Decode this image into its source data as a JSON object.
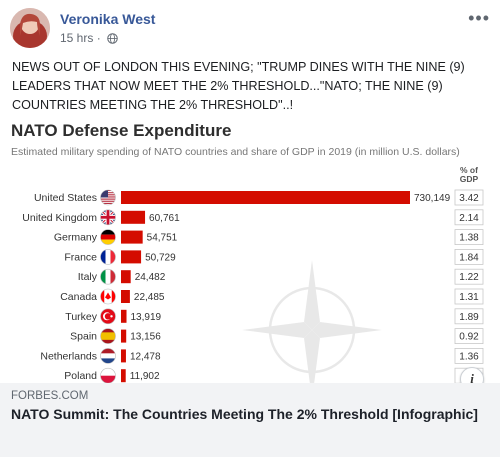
{
  "post": {
    "author": "Veronika West",
    "time": "15 hrs",
    "privacy_icon": "globe-icon",
    "more_label": "•••",
    "text": "NEWS OUT OF LONDON THIS EVENING; \"TRUMP DINES WITH THE NINE (9) LEADERS THAT NOW MEET THE 2% THRESHOLD...\"NATO; THE NINE (9) COUNTRIES MEETING THE 2% THRESHOLD\"..!"
  },
  "link": {
    "domain": "FORBES.COM",
    "title": "NATO Summit: The Countries Meeting The 2% Threshold [Infographic]",
    "info_label": "i"
  },
  "colors": {
    "bar": "#d40c00",
    "author": "#385898",
    "gdp_box_border": "#c8c8c8"
  },
  "chart_data": {
    "type": "bar",
    "title": "NATO Defense Expenditure",
    "subtitle": "Estimated military spending of NATO countries and share of GDP in 2019 (in million U.S. dollars)",
    "gdp_header": "% of GDP",
    "categories": [
      "United States",
      "United Kingdom",
      "Germany",
      "France",
      "Italy",
      "Canada",
      "Turkey",
      "Spain",
      "Netherlands",
      "Poland"
    ],
    "values": [
      730149,
      60761,
      54751,
      50729,
      24482,
      22485,
      13919,
      13156,
      12478,
      11902
    ],
    "value_labels": [
      "730,149",
      "60,761",
      "54,751",
      "50,729",
      "24,482",
      "22,485",
      "13,919",
      "13,156",
      "12,478",
      "11,902"
    ],
    "gdp_share": [
      "3.42",
      "2.14",
      "1.38",
      "1.84",
      "1.22",
      "1.31",
      "1.89",
      "0.92",
      "1.36",
      ""
    ],
    "flag_icons": [
      "us-flag-icon",
      "uk-flag-icon",
      "germany-flag-icon",
      "france-flag-icon",
      "italy-flag-icon",
      "canada-flag-icon",
      "turkey-flag-icon",
      "spain-flag-icon",
      "netherlands-flag-icon",
      "poland-flag-icon"
    ],
    "xlim": [
      0,
      730149
    ],
    "orientation": "horizontal"
  }
}
